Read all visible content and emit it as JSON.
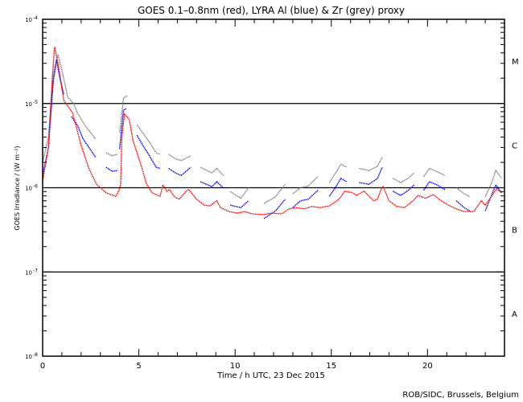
{
  "chart_data": {
    "type": "line",
    "title": "GOES 0.1–0.8nm (red), LYRA Al (blue) & Zr (grey) proxy",
    "xlabel": "Time / h UTC, 23 Dec 2015",
    "ylabel": "GOES Irradiance / (W m⁻²)",
    "xlim": [
      0,
      24
    ],
    "ylim": [
      1e-08,
      0.0001
    ],
    "yscale": "log",
    "x_ticks": [
      "0",
      "5",
      "10",
      "15",
      "20"
    ],
    "x_tick_values": [
      0,
      5,
      10,
      15,
      20
    ],
    "y_ticks": [
      {
        "base": "10",
        "exp": "-4",
        "value": 0.0001
      },
      {
        "base": "10",
        "exp": "-5",
        "value": 1e-05
      },
      {
        "base": "10",
        "exp": "-6",
        "value": 1e-06
      },
      {
        "base": "10",
        "exp": "-7",
        "value": 1e-07
      },
      {
        "base": "10",
        "exp": "-8",
        "value": 1e-08
      }
    ],
    "reference_lines": [
      1e-05,
      1e-06,
      1e-07
    ],
    "flare_classes": [
      {
        "label": "M",
        "value": 3.2e-05
      },
      {
        "label": "C",
        "value": 3.2e-06
      },
      {
        "label": "B",
        "value": 3.2e-07
      },
      {
        "label": "A",
        "value": 3.2e-08
      }
    ],
    "series": [
      {
        "name": "GOES 0.1-0.8nm",
        "color": "#ff0000",
        "segments": [
          [
            [
              0,
              1.2e-06
            ],
            [
              0.3,
              3e-06
            ],
            [
              0.5,
              2e-05
            ],
            [
              0.62,
              4.7e-05
            ],
            [
              0.8,
              3e-05
            ],
            [
              1.1,
              1.09e-05
            ],
            [
              1.55,
              7.8e-06
            ],
            [
              2.0,
              3.2e-06
            ],
            [
              2.4,
              1.7e-06
            ],
            [
              2.8,
              1.1e-06
            ],
            [
              3.3,
              8.7e-07
            ],
            [
              3.8,
              7.9e-07
            ],
            [
              3.95,
              9.1e-07
            ],
            [
              4.05,
              1.08e-06
            ],
            [
              4.12,
              4e-06
            ],
            [
              4.25,
              7.5e-06
            ],
            [
              4.5,
              6.5e-06
            ],
            [
              4.7,
              3.6e-06
            ],
            [
              5.1,
              1.9e-06
            ],
            [
              5.4,
              1.1e-06
            ],
            [
              5.7,
              8.7e-07
            ],
            [
              5.9,
              8.3e-07
            ],
            [
              6.1,
              7.9e-07
            ],
            [
              6.25,
              1.08e-06
            ],
            [
              6.45,
              9.1e-07
            ],
            [
              6.6,
              9.5e-07
            ],
            [
              6.85,
              7.8e-07
            ],
            [
              7.1,
              7.3e-07
            ],
            [
              7.45,
              9.1e-07
            ],
            [
              7.6,
              9.5e-07
            ],
            [
              8.0,
              7.3e-07
            ],
            [
              8.4,
              6.2e-07
            ],
            [
              8.7,
              6.1e-07
            ],
            [
              9.05,
              7e-07
            ],
            [
              9.25,
              5.8e-07
            ],
            [
              9.7,
              5.2e-07
            ],
            [
              10.1,
              5e-07
            ],
            [
              10.5,
              5.2e-07
            ],
            [
              10.9,
              4.9e-07
            ],
            [
              11.5,
              4.8e-07
            ],
            [
              11.9,
              5e-07
            ],
            [
              12.4,
              4.9e-07
            ],
            [
              12.8,
              5.6e-07
            ],
            [
              13.2,
              5.8e-07
            ],
            [
              13.6,
              5.6e-07
            ],
            [
              14.0,
              6e-07
            ],
            [
              14.4,
              5.8e-07
            ],
            [
              14.9,
              6.1e-07
            ],
            [
              15.3,
              7e-07
            ],
            [
              15.5,
              7.8e-07
            ],
            [
              15.7,
              9.1e-07
            ],
            [
              16.1,
              8.7e-07
            ],
            [
              16.3,
              8.1e-07
            ],
            [
              16.7,
              9.1e-07
            ],
            [
              17.2,
              7e-07
            ],
            [
              17.4,
              7.3e-07
            ],
            [
              17.6,
              9.7e-07
            ],
            [
              17.7,
              1.03e-06
            ],
            [
              18.0,
              7e-07
            ],
            [
              18.4,
              6e-07
            ],
            [
              18.8,
              5.8e-07
            ],
            [
              19.25,
              7e-07
            ],
            [
              19.5,
              8.1e-07
            ],
            [
              19.9,
              7.5e-07
            ],
            [
              20.3,
              8.3e-07
            ],
            [
              20.7,
              7e-07
            ],
            [
              21.1,
              6.2e-07
            ],
            [
              21.5,
              5.6e-07
            ],
            [
              21.9,
              5.2e-07
            ],
            [
              22.4,
              5.2e-07
            ],
            [
              22.8,
              7e-07
            ],
            [
              23.0,
              6.2e-07
            ],
            [
              23.3,
              7.8e-07
            ],
            [
              23.6,
              9.7e-07
            ],
            [
              23.85,
              8.7e-07
            ]
          ]
        ]
      },
      {
        "name": "LYRA Al proxy",
        "color": "#0000ff",
        "segments": [
          [
            [
              0,
              1.4e-06
            ],
            [
              0.3,
              3e-06
            ],
            [
              0.55,
              1.8e-05
            ],
            [
              0.72,
              3.3e-05
            ],
            [
              0.9,
              2e-05
            ],
            [
              1.1,
              1.27e-05
            ]
          ],
          [
            [
              1.5,
              7e-06
            ],
            [
              1.83,
              5.4e-06
            ],
            [
              2.1,
              3.8e-06
            ],
            [
              2.5,
              2.8e-06
            ],
            [
              2.75,
              2.3e-06
            ]
          ],
          [
            [
              3.3,
              1.75e-06
            ],
            [
              3.6,
              1.57e-06
            ],
            [
              3.9,
              1.6e-06
            ]
          ],
          [
            [
              4.0,
              2.9e-06
            ],
            [
              4.2,
              8.3e-06
            ],
            [
              4.35,
              8.7e-06
            ]
          ],
          [
            [
              4.9,
              4.2e-06
            ],
            [
              5.2,
              3.2e-06
            ],
            [
              5.5,
              2.5e-06
            ],
            [
              5.9,
              1.75e-06
            ],
            [
              6.1,
              1.7e-06
            ]
          ],
          [
            [
              6.55,
              1.7e-06
            ],
            [
              6.9,
              1.5e-06
            ],
            [
              7.2,
              1.4e-06
            ],
            [
              7.7,
              1.75e-06
            ]
          ],
          [
            [
              8.2,
              1.18e-06
            ],
            [
              8.8,
              1.03e-06
            ],
            [
              9.05,
              1.18e-06
            ],
            [
              9.4,
              9.9e-07
            ]
          ],
          [
            [
              9.75,
              6.2e-07
            ],
            [
              10.3,
              5.8e-07
            ],
            [
              10.7,
              7e-07
            ]
          ],
          [
            [
              11.5,
              4.3e-07
            ],
            [
              12.1,
              5.3e-07
            ],
            [
              12.6,
              7.3e-07
            ]
          ],
          [
            [
              13.0,
              5.8e-07
            ],
            [
              13.4,
              7e-07
            ],
            [
              13.8,
              7.3e-07
            ],
            [
              14.3,
              9.3e-07
            ]
          ],
          [
            [
              14.9,
              7.9e-07
            ],
            [
              15.3,
              1.08e-06
            ],
            [
              15.5,
              1.29e-06
            ],
            [
              15.8,
              1.18e-06
            ]
          ],
          [
            [
              16.45,
              1.15e-06
            ],
            [
              16.95,
              1.1e-06
            ],
            [
              17.4,
              1.29e-06
            ],
            [
              17.65,
              1.75e-06
            ]
          ],
          [
            [
              18.2,
              9.1e-07
            ],
            [
              18.6,
              8.1e-07
            ],
            [
              19.0,
              9.3e-07
            ],
            [
              19.3,
              1.08e-06
            ]
          ],
          [
            [
              19.8,
              9.3e-07
            ],
            [
              20.1,
              1.18e-06
            ],
            [
              20.5,
              1.08e-06
            ],
            [
              20.9,
              9.5e-07
            ]
          ],
          [
            [
              21.5,
              7e-07
            ],
            [
              21.9,
              5.8e-07
            ],
            [
              22.2,
              5.3e-07
            ]
          ],
          [
            [
              23.0,
              5.3e-07
            ],
            [
              23.3,
              7.9e-07
            ],
            [
              23.55,
              1.08e-06
            ],
            [
              23.85,
              8.7e-07
            ]
          ]
        ]
      },
      {
        "name": "LYRA Zr proxy",
        "color": "#808080",
        "segments": [
          [
            [
              0,
              2e-06
            ],
            [
              0.3,
              4e-06
            ],
            [
              0.55,
              2.2e-05
            ],
            [
              0.8,
              3.8e-05
            ],
            [
              1.0,
              2.5e-05
            ],
            [
              1.3,
              1.2e-05
            ],
            [
              1.6,
              1e-05
            ],
            [
              1.8,
              7.8e-06
            ],
            [
              2.2,
              5.5e-06
            ],
            [
              2.75,
              3.8e-06
            ]
          ],
          [
            [
              3.3,
              2.6e-06
            ],
            [
              3.6,
              2.4e-06
            ],
            [
              3.9,
              2.5e-06
            ]
          ],
          [
            [
              4.0,
              4.5e-06
            ],
            [
              4.2,
              1.15e-05
            ],
            [
              4.4,
              1.25e-05
            ]
          ],
          [
            [
              4.9,
              5.6e-06
            ],
            [
              5.2,
              4.5e-06
            ],
            [
              5.5,
              3.6e-06
            ],
            [
              5.9,
              2.6e-06
            ],
            [
              6.1,
              2.5e-06
            ]
          ],
          [
            [
              6.55,
              2.5e-06
            ],
            [
              6.9,
              2.2e-06
            ],
            [
              7.2,
              2.1e-06
            ],
            [
              7.7,
              2.4e-06
            ]
          ],
          [
            [
              8.2,
              1.75e-06
            ],
            [
              8.8,
              1.5e-06
            ],
            [
              9.05,
              1.7e-06
            ],
            [
              9.4,
              1.4e-06
            ]
          ],
          [
            [
              9.75,
              9e-07
            ],
            [
              10.3,
              7.5e-07
            ],
            [
              10.7,
              1e-06
            ]
          ],
          [
            [
              11.5,
              6.5e-07
            ],
            [
              12.1,
              7.8e-07
            ],
            [
              12.6,
              1.1e-06
            ]
          ],
          [
            [
              13.0,
              8.5e-07
            ],
            [
              13.4,
              1e-06
            ],
            [
              13.8,
              1.05e-06
            ],
            [
              14.3,
              1.35e-06
            ]
          ],
          [
            [
              14.9,
              1.15e-06
            ],
            [
              15.3,
              1.6e-06
            ],
            [
              15.5,
              1.9e-06
            ],
            [
              15.8,
              1.75e-06
            ]
          ],
          [
            [
              16.45,
              1.7e-06
            ],
            [
              16.95,
              1.6e-06
            ],
            [
              17.4,
              1.8e-06
            ],
            [
              17.65,
              2.3e-06
            ]
          ],
          [
            [
              18.2,
              1.3e-06
            ],
            [
              18.6,
              1.15e-06
            ],
            [
              19.0,
              1.3e-06
            ],
            [
              19.3,
              1.5e-06
            ]
          ],
          [
            [
              19.8,
              1.35e-06
            ],
            [
              20.1,
              1.7e-06
            ],
            [
              20.5,
              1.55e-06
            ],
            [
              20.9,
              1.4e-06
            ]
          ],
          [
            [
              21.5,
              1e-06
            ],
            [
              21.9,
              8.5e-07
            ],
            [
              22.2,
              7.8e-07
            ]
          ],
          [
            [
              23.0,
              7.8e-07
            ],
            [
              23.3,
              1.1e-06
            ],
            [
              23.55,
              1.6e-06
            ],
            [
              23.85,
              1.3e-06
            ]
          ]
        ]
      }
    ],
    "credit": "ROB/SIDC, Brussels, Belgium"
  }
}
